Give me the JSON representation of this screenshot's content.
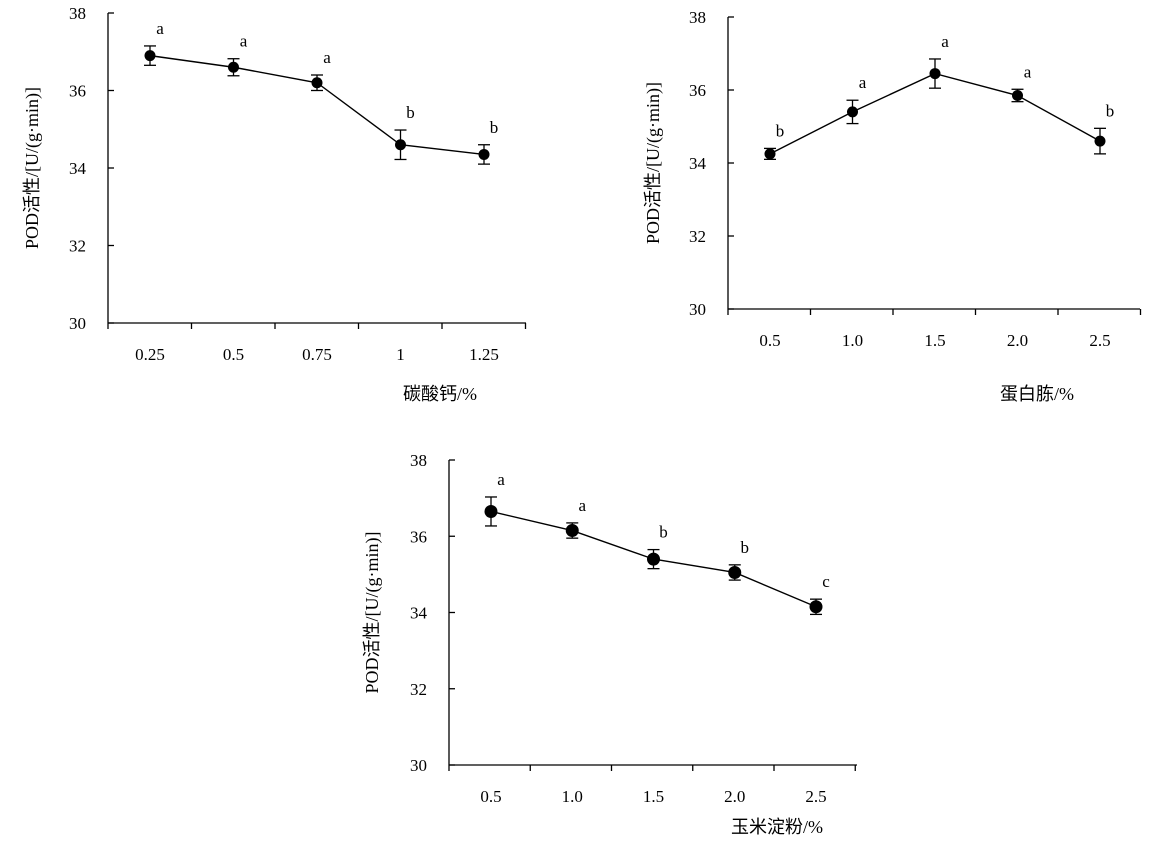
{
  "chart_data": [
    {
      "type": "line",
      "ylabel": "POD活性/[U/(g·min)]",
      "xlabel": "碳酸钙/%",
      "ylim": [
        30,
        38
      ],
      "yticks": [
        "30",
        "32",
        "34",
        "36",
        "38"
      ],
      "categories": [
        "0.25",
        "0.5",
        "0.75",
        "1",
        "1.25"
      ],
      "values": [
        36.9,
        36.6,
        36.2,
        34.6,
        34.35
      ],
      "errors": [
        0.25,
        0.22,
        0.2,
        0.38,
        0.25
      ],
      "letters": [
        "a",
        "a",
        "a",
        "b",
        "b"
      ],
      "grid": false,
      "legend": "none"
    },
    {
      "type": "line",
      "ylabel": "POD活性/[U/(g·min)]",
      "xlabel": "蛋白胨/%",
      "ylim": [
        30,
        38
      ],
      "yticks": [
        "30",
        "32",
        "34",
        "36",
        "38"
      ],
      "categories": [
        "0.5",
        "1.0",
        "1.5",
        "2.0",
        "2.5"
      ],
      "values": [
        34.25,
        35.4,
        36.45,
        35.85,
        34.6
      ],
      "errors": [
        0.15,
        0.32,
        0.4,
        0.17,
        0.35
      ],
      "letters": [
        "b",
        "a",
        "a",
        "a",
        "b"
      ],
      "grid": false,
      "legend": "none"
    },
    {
      "type": "line",
      "ylabel": "POD活性/[U/(g·min)]",
      "xlabel": "玉米淀粉/%",
      "ylim": [
        30,
        38
      ],
      "yticks": [
        "30",
        "32",
        "34",
        "36",
        "38"
      ],
      "categories": [
        "0.5",
        "1.0",
        "1.5",
        "2.0",
        "2.5"
      ],
      "values": [
        36.65,
        36.15,
        35.4,
        35.05,
        34.15
      ],
      "errors": [
        0.38,
        0.2,
        0.25,
        0.2,
        0.2
      ],
      "letters": [
        "a",
        "a",
        "b",
        "b",
        "c"
      ],
      "grid": false,
      "legend": "none"
    }
  ]
}
